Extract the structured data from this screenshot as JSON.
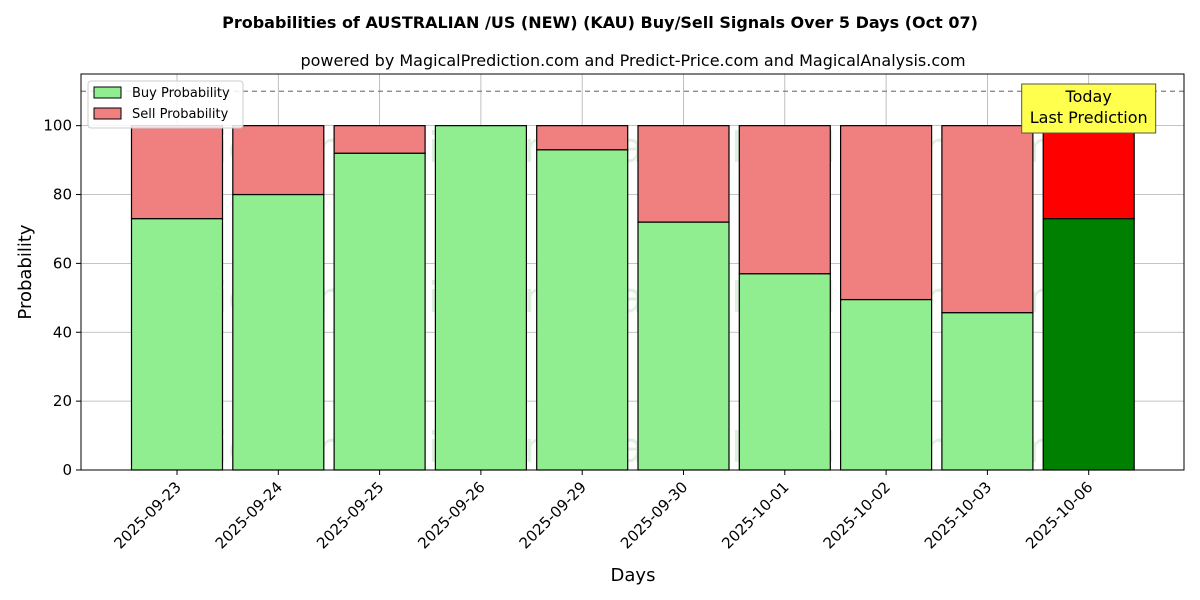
{
  "chart_data": {
    "type": "bar",
    "stacked": true,
    "title": "Probabilities of AUSTRALIAN /US (NEW) (KAU) Buy/Sell Signals Over 5 Days (Oct 07)",
    "subtitle": "powered by MagicalPrediction.com and Predict-Price.com and MagicalAnalysis.com",
    "xlabel": "Days",
    "ylabel": "Probability",
    "ylim": [
      0,
      115
    ],
    "yticks": [
      0,
      20,
      40,
      60,
      80,
      100
    ],
    "grid": true,
    "legend_position": "top-left",
    "reference_line": 110,
    "categories": [
      "2025-09-23",
      "2025-09-24",
      "2025-09-25",
      "2025-09-26",
      "2025-09-29",
      "2025-09-30",
      "2025-10-01",
      "2025-10-02",
      "2025-10-03",
      "2025-10-06"
    ],
    "series": [
      {
        "name": "Buy Probability",
        "color": "#90ee90",
        "highlight_color": "#008000",
        "values": [
          73,
          80,
          92,
          100,
          93,
          72,
          57,
          49.5,
          45.7,
          73
        ]
      },
      {
        "name": "Sell Probability",
        "color": "#f08080",
        "highlight_color": "#ff0000",
        "values": [
          27,
          20,
          8,
          0,
          7,
          28,
          43,
          50.5,
          54.3,
          27
        ]
      }
    ],
    "highlight_index": 9,
    "annotation": {
      "lines": [
        "Today",
        "Last Prediction"
      ],
      "box_color": "#ffff4d"
    },
    "watermarks": [
      "MagicalAnalysis.com",
      "MagicalPrediction.com"
    ]
  }
}
